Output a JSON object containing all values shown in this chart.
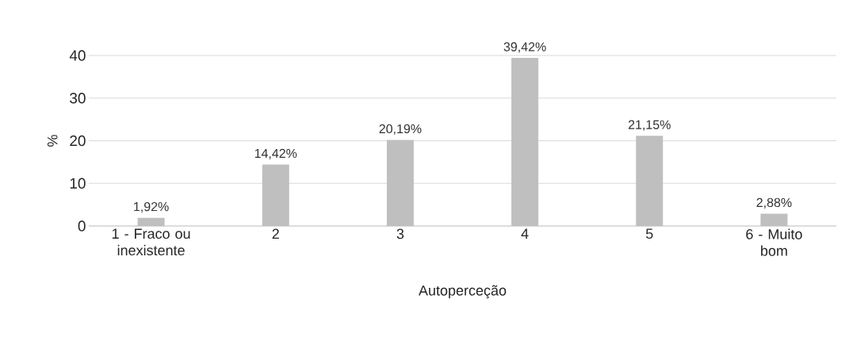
{
  "chart_data": {
    "type": "bar",
    "xlabel": "Autoperceção",
    "ylabel": "%",
    "categories": [
      "1 - Fraco ou inexistente",
      "2",
      "3",
      "4",
      "5",
      "6 - Muito bom"
    ],
    "values": [
      1.92,
      14.42,
      20.19,
      39.42,
      21.15,
      2.88
    ],
    "value_labels": [
      "1,92%",
      "14,42%",
      "20,19%",
      "39,42%",
      "21,15%",
      "2,88%"
    ],
    "color": "#bfbfbf",
    "ylim": [
      0,
      40
    ],
    "yticks": [
      0,
      10,
      20,
      30,
      40
    ],
    "grid": "y"
  }
}
